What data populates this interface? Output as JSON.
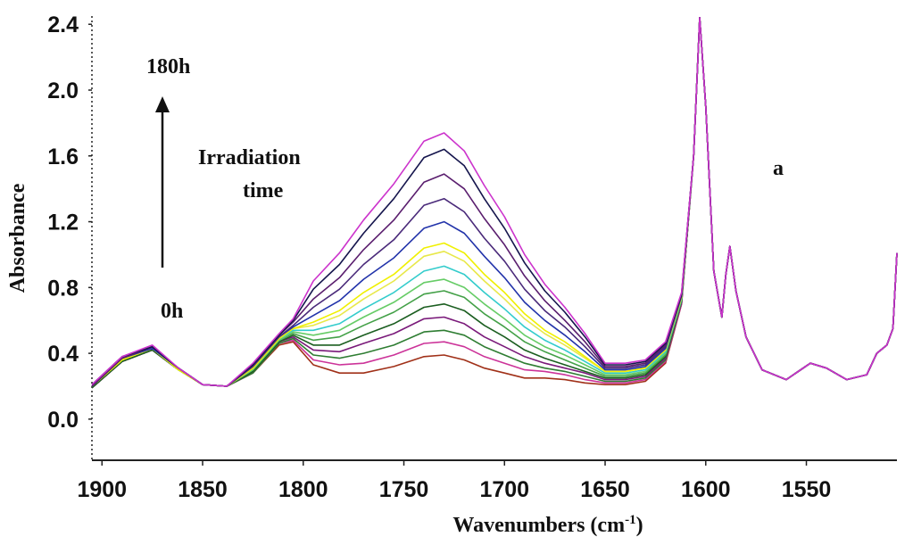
{
  "chart_data": {
    "type": "line",
    "title": "",
    "xlabel": "Wavenumbers (cm",
    "xlabel_sup": "-1",
    "xlabel_close": ")",
    "ylabel": "Absorbance",
    "x_reversed": true,
    "xlim": [
      1905,
      1505
    ],
    "ylim": [
      -0.25,
      2.45
    ],
    "x_ticks": [
      1900,
      1850,
      1800,
      1750,
      1700,
      1650,
      1600,
      1550
    ],
    "y_ticks": [
      0.0,
      0.4,
      0.8,
      1.2,
      1.6,
      2.0,
      2.4
    ],
    "x_tick_labels": [
      "1900",
      "1850",
      "1800",
      "1750",
      "1700",
      "1650",
      "1600",
      "1550"
    ],
    "y_tick_labels": [
      "0.0",
      "0.4",
      "0.8",
      "1.2",
      "1.6",
      "2.0",
      "2.4"
    ],
    "annotations": {
      "panel": "a",
      "top": "180h",
      "bottom": "0h",
      "label_line1": "Irradiation",
      "label_line2": "time"
    },
    "x": [
      1905,
      1890,
      1875,
      1862,
      1850,
      1838,
      1825,
      1812,
      1805,
      1795,
      1782,
      1770,
      1755,
      1740,
      1730,
      1720,
      1710,
      1700,
      1690,
      1680,
      1670,
      1660,
      1650,
      1640,
      1630,
      1620,
      1612,
      1606,
      1603,
      1600,
      1596,
      1592,
      1590,
      1588,
      1585,
      1580,
      1572,
      1560,
      1548,
      1540,
      1530,
      1520,
      1515,
      1510,
      1507,
      1505
    ],
    "series": [
      {
        "color": "#a03018",
        "values": [
          0.19,
          0.35,
          0.42,
          0.3,
          0.21,
          0.2,
          0.28,
          0.45,
          0.47,
          0.33,
          0.28,
          0.28,
          0.32,
          0.38,
          0.39,
          0.36,
          0.31,
          0.28,
          0.25,
          0.25,
          0.24,
          0.22,
          0.21,
          0.21,
          0.23,
          0.34,
          0.7,
          1.6,
          2.44,
          1.9,
          0.9,
          0.62,
          0.88,
          1.05,
          0.78,
          0.5,
          0.3,
          0.24,
          0.34,
          0.31,
          0.24,
          0.27,
          0.4,
          0.45,
          0.55,
          1.01
        ]
      },
      {
        "color": "#cc3399",
        "values": [
          0.19,
          0.35,
          0.42,
          0.3,
          0.21,
          0.2,
          0.28,
          0.46,
          0.48,
          0.36,
          0.33,
          0.34,
          0.39,
          0.46,
          0.47,
          0.44,
          0.38,
          0.34,
          0.3,
          0.29,
          0.27,
          0.24,
          0.22,
          0.22,
          0.24,
          0.35,
          0.7,
          1.6,
          2.44,
          1.9,
          0.9,
          0.62,
          0.88,
          1.05,
          0.78,
          0.5,
          0.3,
          0.24,
          0.34,
          0.31,
          0.24,
          0.27,
          0.4,
          0.45,
          0.55,
          1.01
        ]
      },
      {
        "color": "#2e7d32",
        "values": [
          0.19,
          0.35,
          0.42,
          0.3,
          0.21,
          0.2,
          0.28,
          0.46,
          0.49,
          0.39,
          0.37,
          0.4,
          0.45,
          0.53,
          0.54,
          0.51,
          0.44,
          0.39,
          0.34,
          0.31,
          0.29,
          0.26,
          0.23,
          0.23,
          0.25,
          0.36,
          0.71,
          1.6,
          2.44,
          1.9,
          0.9,
          0.62,
          0.88,
          1.05,
          0.78,
          0.5,
          0.3,
          0.24,
          0.34,
          0.31,
          0.24,
          0.27,
          0.4,
          0.45,
          0.55,
          1.01
        ]
      },
      {
        "color": "#7a1a7a",
        "values": [
          0.19,
          0.35,
          0.42,
          0.3,
          0.21,
          0.2,
          0.29,
          0.47,
          0.5,
          0.42,
          0.41,
          0.46,
          0.52,
          0.61,
          0.62,
          0.58,
          0.5,
          0.44,
          0.38,
          0.34,
          0.31,
          0.28,
          0.24,
          0.24,
          0.26,
          0.37,
          0.71,
          1.6,
          2.44,
          1.9,
          0.9,
          0.62,
          0.88,
          1.05,
          0.78,
          0.5,
          0.3,
          0.24,
          0.34,
          0.31,
          0.24,
          0.27,
          0.4,
          0.45,
          0.55,
          1.01
        ]
      },
      {
        "color": "#1b5e20",
        "values": [
          0.19,
          0.35,
          0.42,
          0.3,
          0.21,
          0.2,
          0.29,
          0.47,
          0.51,
          0.45,
          0.45,
          0.51,
          0.58,
          0.68,
          0.7,
          0.66,
          0.57,
          0.5,
          0.42,
          0.37,
          0.33,
          0.29,
          0.25,
          0.25,
          0.27,
          0.38,
          0.72,
          1.6,
          2.44,
          1.9,
          0.9,
          0.62,
          0.88,
          1.05,
          0.78,
          0.5,
          0.3,
          0.24,
          0.34,
          0.31,
          0.24,
          0.27,
          0.4,
          0.45,
          0.55,
          1.01
        ]
      },
      {
        "color": "#43a047",
        "values": [
          0.2,
          0.36,
          0.43,
          0.3,
          0.21,
          0.2,
          0.3,
          0.48,
          0.52,
          0.48,
          0.5,
          0.57,
          0.65,
          0.76,
          0.78,
          0.74,
          0.64,
          0.56,
          0.47,
          0.41,
          0.36,
          0.31,
          0.26,
          0.26,
          0.28,
          0.39,
          0.72,
          1.6,
          2.44,
          1.9,
          0.9,
          0.62,
          0.88,
          1.05,
          0.78,
          0.5,
          0.3,
          0.24,
          0.34,
          0.31,
          0.24,
          0.27,
          0.4,
          0.45,
          0.55,
          1.01
        ]
      },
      {
        "color": "#66cc66",
        "values": [
          0.2,
          0.36,
          0.43,
          0.3,
          0.21,
          0.2,
          0.3,
          0.48,
          0.53,
          0.51,
          0.54,
          0.62,
          0.71,
          0.83,
          0.85,
          0.8,
          0.7,
          0.61,
          0.51,
          0.44,
          0.39,
          0.33,
          0.27,
          0.27,
          0.29,
          0.4,
          0.73,
          1.6,
          2.44,
          1.9,
          0.9,
          0.62,
          0.88,
          1.05,
          0.78,
          0.5,
          0.3,
          0.24,
          0.34,
          0.31,
          0.24,
          0.27,
          0.4,
          0.45,
          0.55,
          1.01
        ]
      },
      {
        "color": "#33cccc",
        "values": [
          0.2,
          0.36,
          0.43,
          0.3,
          0.21,
          0.2,
          0.31,
          0.49,
          0.54,
          0.54,
          0.58,
          0.67,
          0.77,
          0.9,
          0.93,
          0.88,
          0.77,
          0.67,
          0.56,
          0.48,
          0.42,
          0.35,
          0.28,
          0.28,
          0.3,
          0.41,
          0.73,
          1.6,
          2.44,
          1.9,
          0.9,
          0.62,
          0.88,
          1.05,
          0.78,
          0.5,
          0.3,
          0.24,
          0.34,
          0.31,
          0.24,
          0.27,
          0.4,
          0.45,
          0.55,
          1.01
        ]
      },
      {
        "color": "#e8e84a",
        "values": [
          0.2,
          0.36,
          0.43,
          0.3,
          0.21,
          0.2,
          0.31,
          0.49,
          0.55,
          0.57,
          0.63,
          0.73,
          0.84,
          0.99,
          1.02,
          0.96,
          0.84,
          0.73,
          0.61,
          0.52,
          0.45,
          0.37,
          0.29,
          0.29,
          0.31,
          0.42,
          0.74,
          1.6,
          2.44,
          1.9,
          0.9,
          0.62,
          0.88,
          1.05,
          0.78,
          0.5,
          0.3,
          0.24,
          0.34,
          0.31,
          0.24,
          0.27,
          0.4,
          0.45,
          0.55,
          1.01
        ]
      },
      {
        "color": "#f0f000",
        "values": [
          0.2,
          0.36,
          0.43,
          0.3,
          0.21,
          0.2,
          0.31,
          0.49,
          0.55,
          0.59,
          0.66,
          0.77,
          0.88,
          1.04,
          1.07,
          1.01,
          0.88,
          0.77,
          0.64,
          0.54,
          0.47,
          0.38,
          0.29,
          0.29,
          0.31,
          0.42,
          0.74,
          1.6,
          2.44,
          1.9,
          0.9,
          0.62,
          0.88,
          1.05,
          0.78,
          0.5,
          0.3,
          0.24,
          0.34,
          0.31,
          0.24,
          0.27,
          0.4,
          0.45,
          0.55,
          1.01
        ]
      },
      {
        "color": "#2233aa",
        "values": [
          0.2,
          0.37,
          0.43,
          0.31,
          0.21,
          0.2,
          0.32,
          0.5,
          0.56,
          0.63,
          0.72,
          0.85,
          0.98,
          1.16,
          1.2,
          1.13,
          0.99,
          0.86,
          0.71,
          0.6,
          0.51,
          0.41,
          0.3,
          0.3,
          0.32,
          0.43,
          0.75,
          1.6,
          2.44,
          1.9,
          0.9,
          0.62,
          0.88,
          1.05,
          0.78,
          0.5,
          0.3,
          0.24,
          0.34,
          0.31,
          0.24,
          0.27,
          0.4,
          0.45,
          0.55,
          1.01
        ]
      },
      {
        "color": "#4a2a7a",
        "values": [
          0.2,
          0.37,
          0.44,
          0.31,
          0.21,
          0.2,
          0.32,
          0.5,
          0.57,
          0.68,
          0.79,
          0.94,
          1.09,
          1.3,
          1.34,
          1.26,
          1.1,
          0.96,
          0.79,
          0.66,
          0.56,
          0.44,
          0.31,
          0.31,
          0.33,
          0.44,
          0.75,
          1.6,
          2.44,
          1.9,
          0.9,
          0.62,
          0.88,
          1.05,
          0.78,
          0.5,
          0.3,
          0.24,
          0.34,
          0.31,
          0.24,
          0.27,
          0.4,
          0.45,
          0.55,
          1.01
        ]
      },
      {
        "color": "#5a1e6e",
        "values": [
          0.2,
          0.37,
          0.44,
          0.31,
          0.21,
          0.2,
          0.33,
          0.51,
          0.59,
          0.73,
          0.86,
          1.03,
          1.21,
          1.44,
          1.49,
          1.4,
          1.22,
          1.06,
          0.87,
          0.72,
          0.6,
          0.47,
          0.32,
          0.32,
          0.34,
          0.45,
          0.76,
          1.6,
          2.44,
          1.9,
          0.9,
          0.62,
          0.88,
          1.05,
          0.78,
          0.5,
          0.3,
          0.24,
          0.34,
          0.31,
          0.24,
          0.27,
          0.4,
          0.45,
          0.55,
          1.01
        ]
      },
      {
        "color": "#15154d",
        "values": [
          0.21,
          0.38,
          0.44,
          0.31,
          0.21,
          0.2,
          0.33,
          0.51,
          0.6,
          0.79,
          0.94,
          1.13,
          1.34,
          1.59,
          1.64,
          1.54,
          1.34,
          1.16,
          0.95,
          0.78,
          0.65,
          0.5,
          0.33,
          0.33,
          0.35,
          0.46,
          0.76,
          1.6,
          2.44,
          1.9,
          0.9,
          0.62,
          0.88,
          1.05,
          0.78,
          0.5,
          0.3,
          0.24,
          0.34,
          0.31,
          0.24,
          0.27,
          0.4,
          0.45,
          0.55,
          1.01
        ]
      },
      {
        "color": "#cc33cc",
        "values": [
          0.21,
          0.38,
          0.45,
          0.31,
          0.21,
          0.2,
          0.34,
          0.52,
          0.61,
          0.84,
          1.01,
          1.21,
          1.43,
          1.69,
          1.74,
          1.63,
          1.42,
          1.23,
          1.0,
          0.82,
          0.68,
          0.52,
          0.34,
          0.34,
          0.36,
          0.47,
          0.77,
          1.6,
          2.44,
          1.9,
          0.9,
          0.62,
          0.88,
          1.05,
          0.78,
          0.5,
          0.3,
          0.24,
          0.34,
          0.31,
          0.24,
          0.27,
          0.4,
          0.45,
          0.55,
          1.01
        ]
      }
    ]
  }
}
